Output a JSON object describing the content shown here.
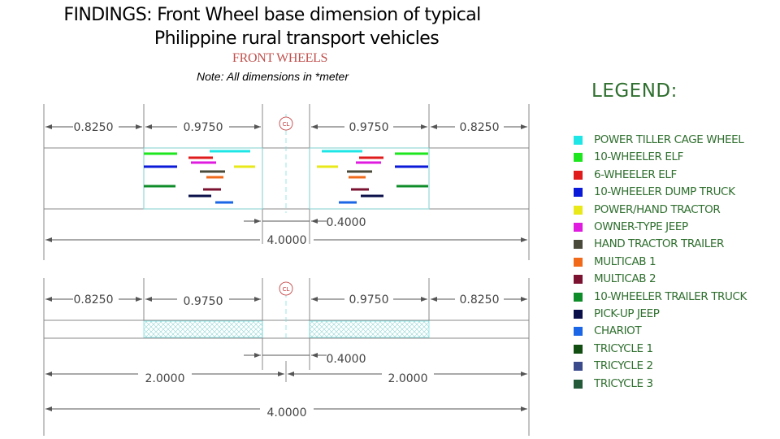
{
  "title": {
    "line1": "FINDINGS:   Front Wheel base dimension of typical",
    "line2": "Philippine rural transport vehicles"
  },
  "subtitle": "FRONT WHEELS",
  "note": "Note: All dimensions in *meter",
  "centerline_symbol": "CL",
  "top_diagram": {
    "dims": [
      "0.8250",
      "0.9750",
      "0.9750",
      "0.8250"
    ],
    "center_gap": "0.4000",
    "total": "4.0000"
  },
  "bottom_diagram": {
    "dims": [
      "0.8250",
      "0.9750",
      "0.9750",
      "0.8250"
    ],
    "center_gap": "0.4000",
    "halves": [
      "2.0000",
      "2.0000"
    ],
    "total": "4.0000"
  },
  "legend": {
    "title": "LEGEND:",
    "items": [
      {
        "label": "POWER TILLER CAGE WHEEL",
        "color": "#1fe6e6"
      },
      {
        "label": "10-WHEELER ELF",
        "color": "#1ee61e"
      },
      {
        "label": "6-WHEELER ELF",
        "color": "#e01b1b"
      },
      {
        "label": "10-WHEELER DUMP TRUCK",
        "color": "#0a1ad8"
      },
      {
        "label": "POWER/HAND TRACTOR",
        "color": "#e8e81a"
      },
      {
        "label": "OWNER-TYPE JEEP",
        "color": "#e01be0"
      },
      {
        "label": "HAND TRACTOR TRAILER",
        "color": "#4a4a3a"
      },
      {
        "label": "MULTICAB 1",
        "color": "#f06a1a"
      },
      {
        "label": "MULTICAB 2",
        "color": "#7a1230"
      },
      {
        "label": "10-WHEELER TRAILER TRUCK",
        "color": "#0f8c2a"
      },
      {
        "label": "PICK-UP JEEP",
        "color": "#0a0f4a"
      },
      {
        "label": "CHARIOT",
        "color": "#1a66e6"
      },
      {
        "label": "TRICYCLE 1",
        "color": "#124d12"
      },
      {
        "label": "TRICYCLE 2",
        "color": "#3a4a8a"
      },
      {
        "label": "TRICYCLE 3",
        "color": "#245a3a"
      }
    ]
  }
}
